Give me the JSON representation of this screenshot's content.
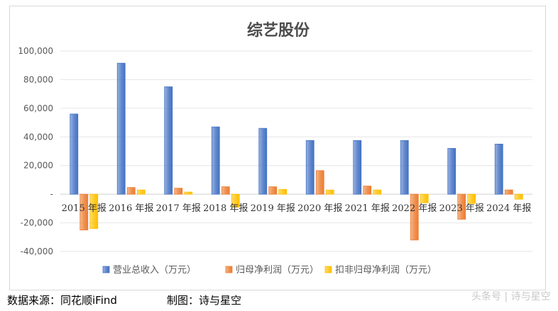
{
  "chart_data": {
    "type": "bar",
    "title": "综艺股份",
    "categories": [
      "2015 年报",
      "2016 年报",
      "2017 年报",
      "2018 年报",
      "2019 年报",
      "2020 年报",
      "2021 年报",
      "2022 年报",
      "2023 年报",
      "2024 年报"
    ],
    "series": [
      {
        "name": "营业总收入（万元）",
        "color": "#4472c4",
        "values": [
          56000,
          91500,
          75000,
          47000,
          46000,
          37500,
          37500,
          37500,
          32000,
          35000
        ]
      },
      {
        "name": "归母净利润（万元）",
        "color": "#ed7d31",
        "values": [
          -25000,
          4700,
          4200,
          5200,
          5200,
          16500,
          5700,
          -32000,
          -17500,
          3000
        ]
      },
      {
        "name": "扣非归母净利润（万元）",
        "color": "#ffc000",
        "values": [
          -24000,
          3000,
          1500,
          -9000,
          3400,
          2900,
          3000,
          -6000,
          -6500,
          -3500
        ]
      }
    ],
    "yticks": [
      "100,000",
      "80,000",
      "60,000",
      "40,000",
      "20,000",
      "-",
      "-20,000",
      "-40,000"
    ],
    "ylim": [
      -40000,
      100000
    ],
    "grid": true,
    "legend_position": "bottom"
  },
  "footer": {
    "source": "数据来源：同花顺iFind",
    "credit": "制图：诗与星空"
  },
  "watermark": "头条号 | 诗与星空"
}
